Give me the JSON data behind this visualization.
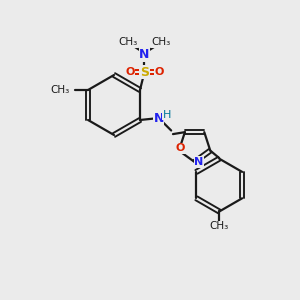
{
  "background_color": "#ebebeb",
  "bond_color": "#1a1a1a",
  "S_color": "#ccaa00",
  "O_color": "#dd2200",
  "N_color": "#2222ee",
  "H_color": "#007799",
  "figsize": [
    3.0,
    3.0
  ],
  "dpi": 100,
  "xlim": [
    0,
    10
  ],
  "ylim": [
    0,
    10
  ]
}
